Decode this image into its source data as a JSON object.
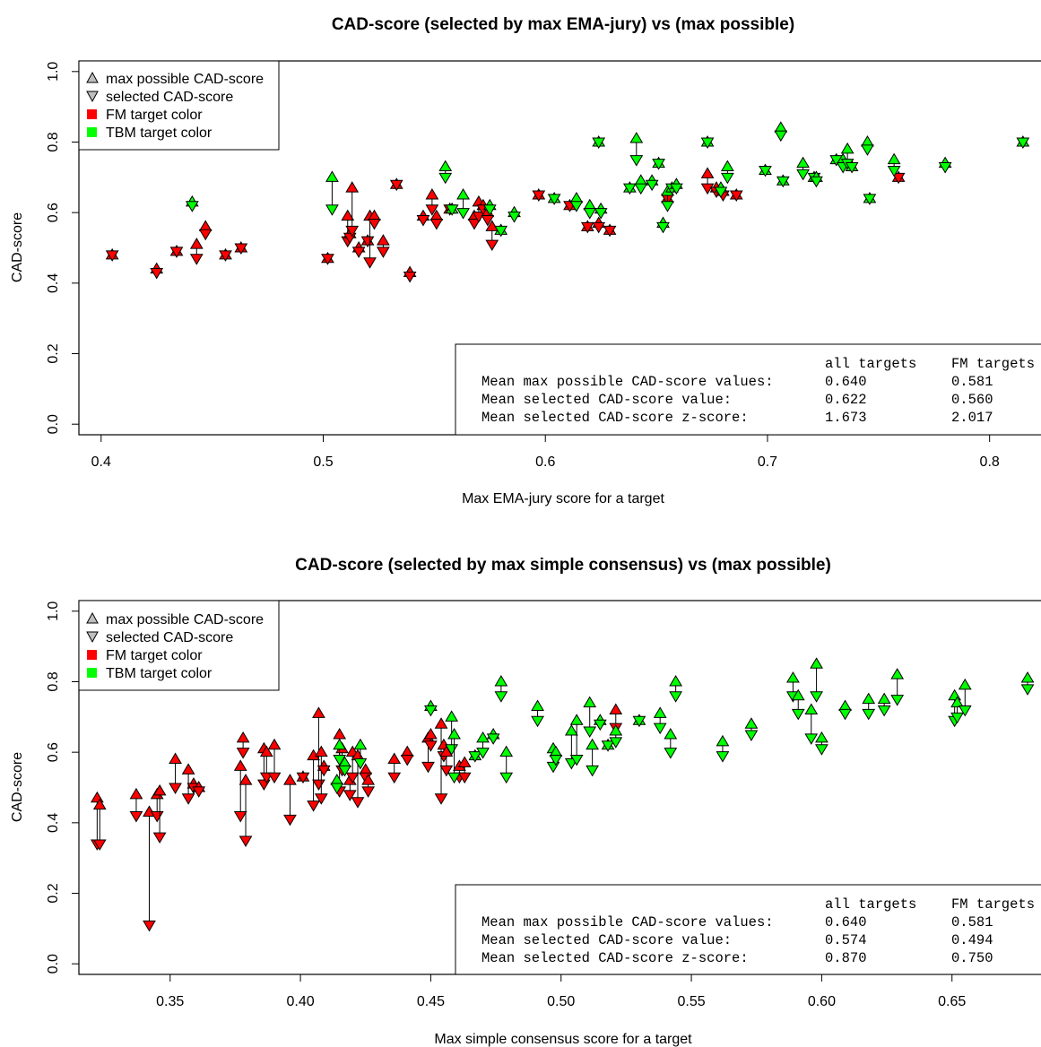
{
  "colors": {
    "FM": "#ff0000",
    "TBM": "#00ff00",
    "legend_triangle": "#bebebe"
  },
  "chart_data": [
    {
      "type": "scatter",
      "title": "CAD-score (selected by max EMA-jury) vs (max possible)",
      "xlabel": "Max EMA-jury score for a target",
      "ylabel": "CAD-score",
      "xlim": [
        0.39,
        0.83
      ],
      "ylim": [
        -0.03,
        1.03
      ],
      "xticks": [
        0.4,
        0.5,
        0.6,
        0.7,
        0.8
      ],
      "xtick_labels": [
        "0.4",
        "0.5",
        "0.6",
        "0.7",
        "0.8"
      ],
      "yticks": [
        0.0,
        0.2,
        0.4,
        0.6,
        0.8,
        1.0
      ],
      "ytick_labels": [
        "0.0",
        "0.2",
        "0.4",
        "0.6",
        "0.8",
        "1.0"
      ],
      "legend_position": "top-left",
      "legend": [
        {
          "label": "max possible CAD-score",
          "symbol": "triangle-up"
        },
        {
          "label": "selected CAD-score",
          "symbol": "triangle-down"
        },
        {
          "label": "FM target color",
          "symbol": "square-FM"
        },
        {
          "label": "TBM target color",
          "symbol": "square-TBM"
        }
      ],
      "stats": {
        "position": "bottom-right",
        "headers": [
          "",
          "all targets",
          "FM targets"
        ],
        "rows": [
          [
            "Mean max possible CAD-score values:",
            "0.640",
            "0.581"
          ],
          [
            "Mean selected CAD-score value:",
            "0.622",
            "0.560"
          ],
          [
            "Mean selected CAD-score z-score:",
            "1.673",
            "2.017"
          ]
        ]
      },
      "series": [
        {
          "name": "FM",
          "points": [
            [
              0.405,
              0.48,
              0.48
            ],
            [
              0.425,
              0.44,
              0.43
            ],
            [
              0.434,
              0.49,
              0.49
            ],
            [
              0.443,
              0.51,
              0.47
            ],
            [
              0.447,
              0.56,
              0.54
            ],
            [
              0.456,
              0.48,
              0.48
            ],
            [
              0.463,
              0.5,
              0.5
            ],
            [
              0.502,
              0.47,
              0.47
            ],
            [
              0.511,
              0.59,
              0.52
            ],
            [
              0.512,
              0.54,
              0.53
            ],
            [
              0.513,
              0.67,
              0.55
            ],
            [
              0.516,
              0.5,
              0.49
            ],
            [
              0.52,
              0.52,
              0.52
            ],
            [
              0.521,
              0.59,
              0.46
            ],
            [
              0.523,
              0.59,
              0.57
            ],
            [
              0.527,
              0.52,
              0.49
            ],
            [
              0.533,
              0.68,
              0.68
            ],
            [
              0.539,
              0.43,
              0.42
            ],
            [
              0.545,
              0.59,
              0.58
            ],
            [
              0.549,
              0.65,
              0.61
            ],
            [
              0.551,
              0.59,
              0.57
            ],
            [
              0.557,
              0.61,
              0.61
            ],
            [
              0.568,
              0.59,
              0.57
            ],
            [
              0.57,
              0.63,
              0.59
            ],
            [
              0.572,
              0.62,
              0.61
            ],
            [
              0.574,
              0.6,
              0.58
            ],
            [
              0.576,
              0.56,
              0.51
            ],
            [
              0.597,
              0.65,
              0.65
            ],
            [
              0.611,
              0.62,
              0.62
            ],
            [
              0.619,
              0.56,
              0.56
            ],
            [
              0.624,
              0.57,
              0.56
            ],
            [
              0.629,
              0.55,
              0.55
            ],
            [
              0.655,
              0.64,
              0.64
            ],
            [
              0.673,
              0.71,
              0.67
            ],
            [
              0.677,
              0.67,
              0.66
            ],
            [
              0.68,
              0.66,
              0.65
            ],
            [
              0.686,
              0.65,
              0.65
            ],
            [
              0.759,
              0.7,
              0.7
            ]
          ]
        },
        {
          "name": "TBM",
          "points": [
            [
              0.441,
              0.63,
              0.62
            ],
            [
              0.504,
              0.7,
              0.61
            ],
            [
              0.555,
              0.73,
              0.7
            ],
            [
              0.558,
              0.61,
              0.61
            ],
            [
              0.563,
              0.65,
              0.6
            ],
            [
              0.575,
              0.62,
              0.61
            ],
            [
              0.586,
              0.6,
              0.59
            ],
            [
              0.58,
              0.55,
              0.55
            ],
            [
              0.604,
              0.64,
              0.64
            ],
            [
              0.614,
              0.64,
              0.62
            ],
            [
              0.62,
              0.62,
              0.6
            ],
            [
              0.624,
              0.8,
              0.8
            ],
            [
              0.625,
              0.61,
              0.6
            ],
            [
              0.638,
              0.67,
              0.67
            ],
            [
              0.641,
              0.81,
              0.75
            ],
            [
              0.643,
              0.69,
              0.67
            ],
            [
              0.648,
              0.69,
              0.68
            ],
            [
              0.651,
              0.74,
              0.74
            ],
            [
              0.653,
              0.57,
              0.56
            ],
            [
              0.655,
              0.66,
              0.62
            ],
            [
              0.657,
              0.67,
              0.67
            ],
            [
              0.659,
              0.68,
              0.67
            ],
            [
              0.673,
              0.8,
              0.8
            ],
            [
              0.679,
              0.67,
              0.66
            ],
            [
              0.682,
              0.73,
              0.7
            ],
            [
              0.699,
              0.72,
              0.72
            ],
            [
              0.706,
              0.84,
              0.82
            ],
            [
              0.707,
              0.69,
              0.69
            ],
            [
              0.716,
              0.74,
              0.71
            ],
            [
              0.721,
              0.7,
              0.7
            ],
            [
              0.722,
              0.7,
              0.69
            ],
            [
              0.731,
              0.75,
              0.75
            ],
            [
              0.734,
              0.75,
              0.73
            ],
            [
              0.736,
              0.78,
              0.74
            ],
            [
              0.738,
              0.73,
              0.73
            ],
            [
              0.745,
              0.8,
              0.78
            ],
            [
              0.746,
              0.64,
              0.64
            ],
            [
              0.757,
              0.75,
              0.72
            ],
            [
              0.78,
              0.74,
              0.73
            ],
            [
              0.815,
              0.8,
              0.8
            ]
          ]
        }
      ]
    },
    {
      "type": "scatter",
      "title": "CAD-score (selected by max simple consensus) vs (max possible)",
      "xlabel": "Max simple consensus score for a target",
      "ylabel": "CAD-score",
      "xlim": [
        0.315,
        0.69
      ],
      "ylim": [
        -0.03,
        1.03
      ],
      "xticks": [
        0.35,
        0.4,
        0.45,
        0.5,
        0.55,
        0.6,
        0.65
      ],
      "xtick_labels": [
        "0.35",
        "0.40",
        "0.45",
        "0.50",
        "0.55",
        "0.60",
        "0.65"
      ],
      "yticks": [
        0.0,
        0.2,
        0.4,
        0.6,
        0.8,
        1.0
      ],
      "ytick_labels": [
        "0.0",
        "0.2",
        "0.4",
        "0.6",
        "0.8",
        "1.0"
      ],
      "legend_position": "top-left",
      "legend": [
        {
          "label": "max possible CAD-score",
          "symbol": "triangle-up"
        },
        {
          "label": "selected CAD-score",
          "symbol": "triangle-down"
        },
        {
          "label": "FM target color",
          "symbol": "square-FM"
        },
        {
          "label": "TBM target color",
          "symbol": "square-TBM"
        }
      ],
      "stats": {
        "position": "bottom-right",
        "headers": [
          "",
          "all targets",
          "FM targets"
        ],
        "rows": [
          [
            "Mean max possible CAD-score values:",
            "0.640",
            "0.581"
          ],
          [
            "Mean selected CAD-score value:",
            "0.574",
            "0.494"
          ],
          [
            "Mean selected CAD-score z-score:",
            "0.870",
            "0.750"
          ]
        ]
      },
      "series": [
        {
          "name": "FM",
          "points": [
            [
              0.322,
              0.47,
              0.34
            ],
            [
              0.323,
              0.45,
              0.34
            ],
            [
              0.337,
              0.48,
              0.42
            ],
            [
              0.342,
              0.43,
              0.11
            ],
            [
              0.345,
              0.48,
              0.42
            ],
            [
              0.346,
              0.49,
              0.36
            ],
            [
              0.352,
              0.58,
              0.5
            ],
            [
              0.357,
              0.55,
              0.47
            ],
            [
              0.359,
              0.51,
              0.5
            ],
            [
              0.361,
              0.5,
              0.49
            ],
            [
              0.377,
              0.56,
              0.42
            ],
            [
              0.378,
              0.64,
              0.6
            ],
            [
              0.379,
              0.52,
              0.35
            ],
            [
              0.386,
              0.61,
              0.51
            ],
            [
              0.387,
              0.6,
              0.53
            ],
            [
              0.39,
              0.62,
              0.53
            ],
            [
              0.396,
              0.52,
              0.41
            ],
            [
              0.401,
              0.53,
              0.53
            ],
            [
              0.405,
              0.59,
              0.45
            ],
            [
              0.407,
              0.71,
              0.51
            ],
            [
              0.408,
              0.6,
              0.47
            ],
            [
              0.409,
              0.56,
              0.55
            ],
            [
              0.415,
              0.65,
              0.49
            ],
            [
              0.416,
              0.61,
              0.55
            ],
            [
              0.419,
              0.52,
              0.48
            ],
            [
              0.42,
              0.6,
              0.53
            ],
            [
              0.422,
              0.59,
              0.46
            ],
            [
              0.425,
              0.55,
              0.53
            ],
            [
              0.426,
              0.52,
              0.49
            ],
            [
              0.436,
              0.58,
              0.53
            ],
            [
              0.441,
              0.6,
              0.58
            ],
            [
              0.449,
              0.64,
              0.56
            ],
            [
              0.45,
              0.65,
              0.62
            ],
            [
              0.454,
              0.68,
              0.47
            ],
            [
              0.455,
              0.62,
              0.59
            ],
            [
              0.456,
              0.6,
              0.55
            ],
            [
              0.461,
              0.56,
              0.53
            ],
            [
              0.463,
              0.57,
              0.53
            ],
            [
              0.521,
              0.72,
              0.67
            ]
          ]
        },
        {
          "name": "TBM",
          "points": [
            [
              0.414,
              0.52,
              0.5
            ],
            [
              0.415,
              0.62,
              0.58
            ],
            [
              0.417,
              0.57,
              0.55
            ],
            [
              0.423,
              0.62,
              0.57
            ],
            [
              0.45,
              0.73,
              0.72
            ],
            [
              0.458,
              0.7,
              0.61
            ],
            [
              0.459,
              0.65,
              0.53
            ],
            [
              0.467,
              0.59,
              0.59
            ],
            [
              0.47,
              0.64,
              0.6
            ],
            [
              0.474,
              0.65,
              0.64
            ],
            [
              0.477,
              0.8,
              0.76
            ],
            [
              0.479,
              0.6,
              0.53
            ],
            [
              0.491,
              0.73,
              0.69
            ],
            [
              0.497,
              0.61,
              0.56
            ],
            [
              0.498,
              0.6,
              0.58
            ],
            [
              0.504,
              0.66,
              0.57
            ],
            [
              0.506,
              0.69,
              0.58
            ],
            [
              0.511,
              0.74,
              0.66
            ],
            [
              0.512,
              0.62,
              0.55
            ],
            [
              0.515,
              0.69,
              0.68
            ],
            [
              0.518,
              0.62,
              0.62
            ],
            [
              0.521,
              0.66,
              0.63
            ],
            [
              0.53,
              0.69,
              0.69
            ],
            [
              0.538,
              0.71,
              0.67
            ],
            [
              0.542,
              0.65,
              0.6
            ],
            [
              0.544,
              0.8,
              0.76
            ],
            [
              0.562,
              0.63,
              0.59
            ],
            [
              0.573,
              0.68,
              0.65
            ],
            [
              0.589,
              0.81,
              0.76
            ],
            [
              0.591,
              0.76,
              0.71
            ],
            [
              0.596,
              0.72,
              0.64
            ],
            [
              0.598,
              0.85,
              0.76
            ],
            [
              0.6,
              0.64,
              0.61
            ],
            [
              0.609,
              0.73,
              0.71
            ],
            [
              0.618,
              0.75,
              0.71
            ],
            [
              0.624,
              0.75,
              0.72
            ],
            [
              0.629,
              0.82,
              0.75
            ],
            [
              0.651,
              0.76,
              0.69
            ],
            [
              0.652,
              0.74,
              0.7
            ],
            [
              0.655,
              0.79,
              0.72
            ],
            [
              0.679,
              0.81,
              0.78
            ]
          ]
        }
      ]
    }
  ]
}
